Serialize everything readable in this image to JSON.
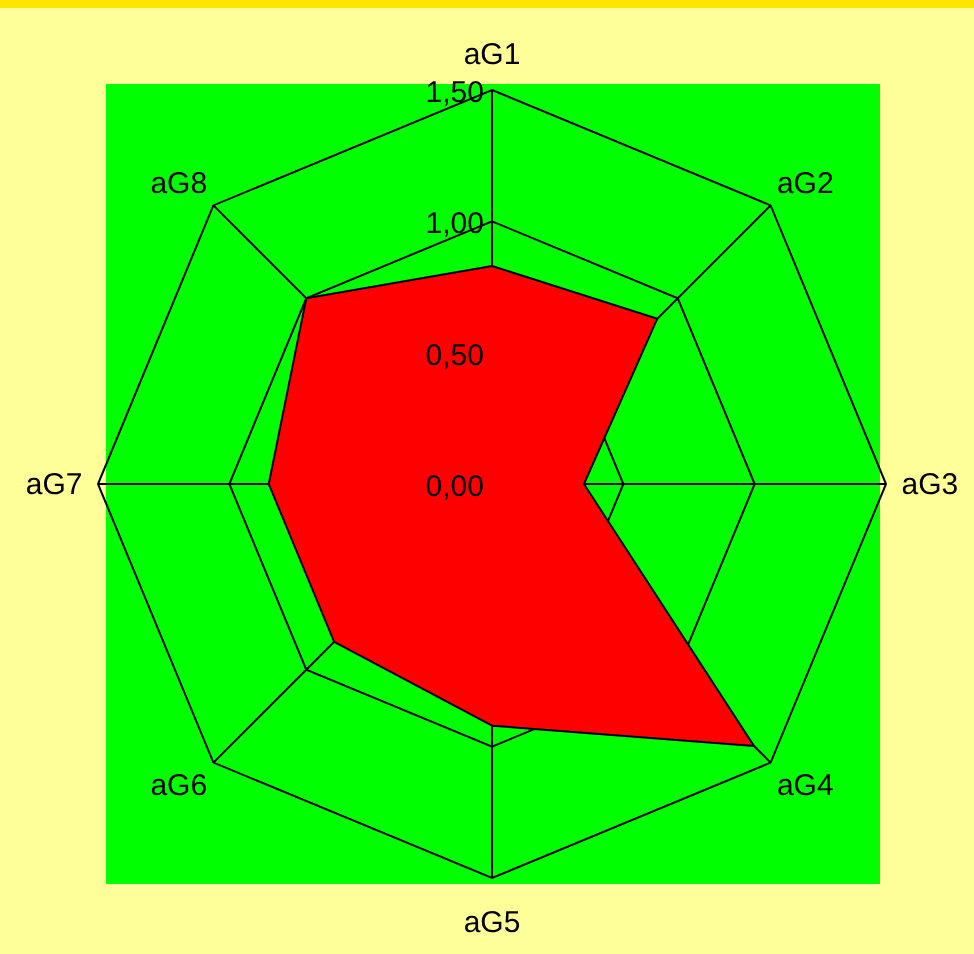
{
  "chart_data": {
    "type": "radar",
    "categories": [
      "aG1",
      "aG2",
      "aG3",
      "aG4",
      "aG5",
      "aG6",
      "aG7",
      "aG8"
    ],
    "series": [
      {
        "color": "#ff0000",
        "values": [
          0.83,
          0.89,
          0.35,
          1.41,
          0.92,
          0.85,
          0.85,
          1.0
        ]
      }
    ],
    "ylim": [
      0,
      1.5
    ],
    "yticks": [
      {
        "value": 0,
        "label": "0,00"
      },
      {
        "value": 0.5,
        "label": "0,50"
      },
      {
        "value": 1,
        "label": "1,00"
      },
      {
        "value": 1.5,
        "label": "1,50"
      }
    ],
    "grid": true
  }
}
